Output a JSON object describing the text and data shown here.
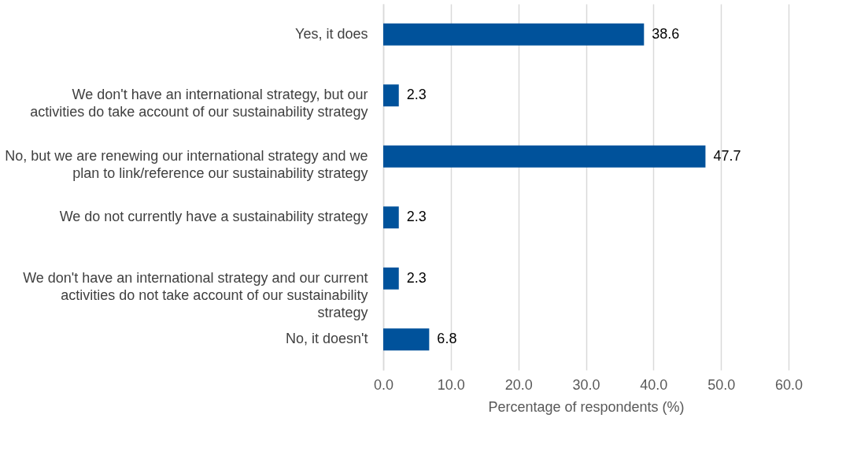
{
  "chart_data": {
    "type": "bar",
    "orientation": "horizontal",
    "xlabel": "Percentage of respondents (%)",
    "categories": [
      "Yes, it does",
      "We don't have an international strategy, but our activities do take account of our sustainability strategy",
      "No, but we are renewing our international strategy and we plan to link/reference our sustainability strategy",
      "We do not currently have a sustainability strategy",
      "We don't have an international strategy and our current activities do not take account of our sustainability strategy",
      "No, it doesn't"
    ],
    "values": [
      38.6,
      2.3,
      47.7,
      2.3,
      2.3,
      6.8
    ],
    "color": "#00529b",
    "xlim": [
      0,
      60
    ],
    "xticks": [
      {
        "value": 0,
        "label": "0.0"
      },
      {
        "value": 10,
        "label": "10.0"
      },
      {
        "value": 20,
        "label": "20.0"
      },
      {
        "value": 30,
        "label": "30.0"
      },
      {
        "value": 40,
        "label": "40.0"
      },
      {
        "value": 50,
        "label": "50.0"
      },
      {
        "value": 60,
        "label": "60.0"
      }
    ],
    "grid": "x",
    "data_labels": true
  }
}
